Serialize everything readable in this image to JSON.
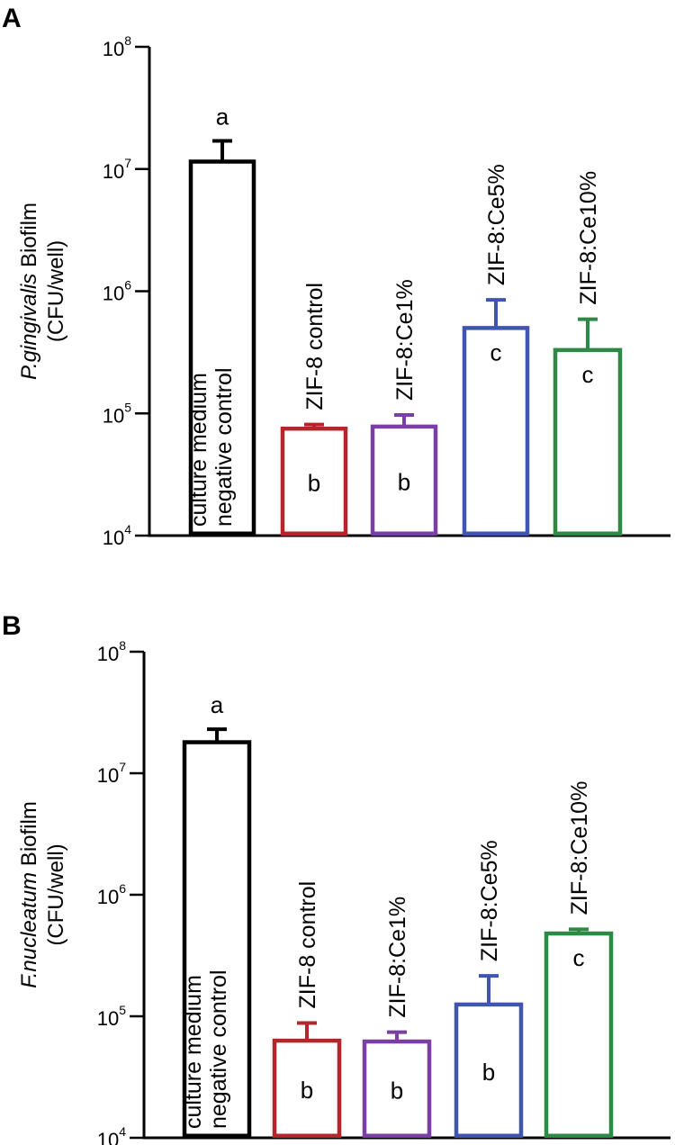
{
  "chart_data": [
    {
      "panel": "A",
      "type": "bar",
      "yscale": "log",
      "ylim": [
        10000,
        100000000
      ],
      "y_ticks": [
        {
          "base": "10",
          "exp": "8"
        },
        {
          "base": "10",
          "exp": "7"
        },
        {
          "base": "10",
          "exp": "6"
        },
        {
          "base": "10",
          "exp": "5"
        },
        {
          "base": "10",
          "exp": "4"
        }
      ],
      "ylabel_italic": "P.gingivalis",
      "ylabel_rest": " Biofilm",
      "ylabel_units": "(CFU/well)",
      "bars": [
        {
          "label_lines": [
            "culture medium",
            "negative control"
          ],
          "value": 11500000,
          "error_top": 17000000,
          "letter": "a",
          "color": "#000000"
        },
        {
          "label_lines": [
            "ZIF-8 control"
          ],
          "value": 75000,
          "error_top": 81000,
          "letter": "b",
          "color": "#b5262c"
        },
        {
          "label_lines": [
            "ZIF-8:Ce1%"
          ],
          "value": 78000,
          "error_top": 97000,
          "letter": "b",
          "color": "#7b3ea5"
        },
        {
          "label_lines": [
            "ZIF-8:Ce5%"
          ],
          "value": 500000,
          "error_top": 850000,
          "letter": "c",
          "color": "#3f55b0"
        },
        {
          "label_lines": [
            "ZIF-8:Ce10%"
          ],
          "value": 330000,
          "error_top": 590000,
          "letter": "c",
          "color": "#2d8a45"
        }
      ]
    },
    {
      "panel": "B",
      "type": "bar",
      "yscale": "log",
      "ylim": [
        10000,
        100000000
      ],
      "y_ticks": [
        {
          "base": "10",
          "exp": "8"
        },
        {
          "base": "10",
          "exp": "7"
        },
        {
          "base": "10",
          "exp": "6"
        },
        {
          "base": "10",
          "exp": "5"
        },
        {
          "base": "10",
          "exp": "4"
        }
      ],
      "ylabel_italic": "F.nucleatum",
      "ylabel_rest": " Biofilm",
      "ylabel_units": "(CFU/well)",
      "bars": [
        {
          "label_lines": [
            "culture medium",
            "negative control"
          ],
          "value": 18000000,
          "error_top": 23000000,
          "letter": "a",
          "color": "#000000"
        },
        {
          "label_lines": [
            "ZIF-8 control"
          ],
          "value": 63000,
          "error_top": 88000,
          "letter": "b",
          "color": "#b5262c"
        },
        {
          "label_lines": [
            "ZIF-8:Ce1%"
          ],
          "value": 62000,
          "error_top": 74000,
          "letter": "b",
          "color": "#7b3ea5"
        },
        {
          "label_lines": [
            "ZIF-8:Ce5%"
          ],
          "value": 125000,
          "error_top": 215000,
          "letter": "b",
          "color": "#3f55b0"
        },
        {
          "label_lines": [
            "ZIF-8:Ce10%"
          ],
          "value": 480000,
          "error_top": 520000,
          "letter": "c",
          "color": "#2d8a45"
        }
      ]
    }
  ]
}
